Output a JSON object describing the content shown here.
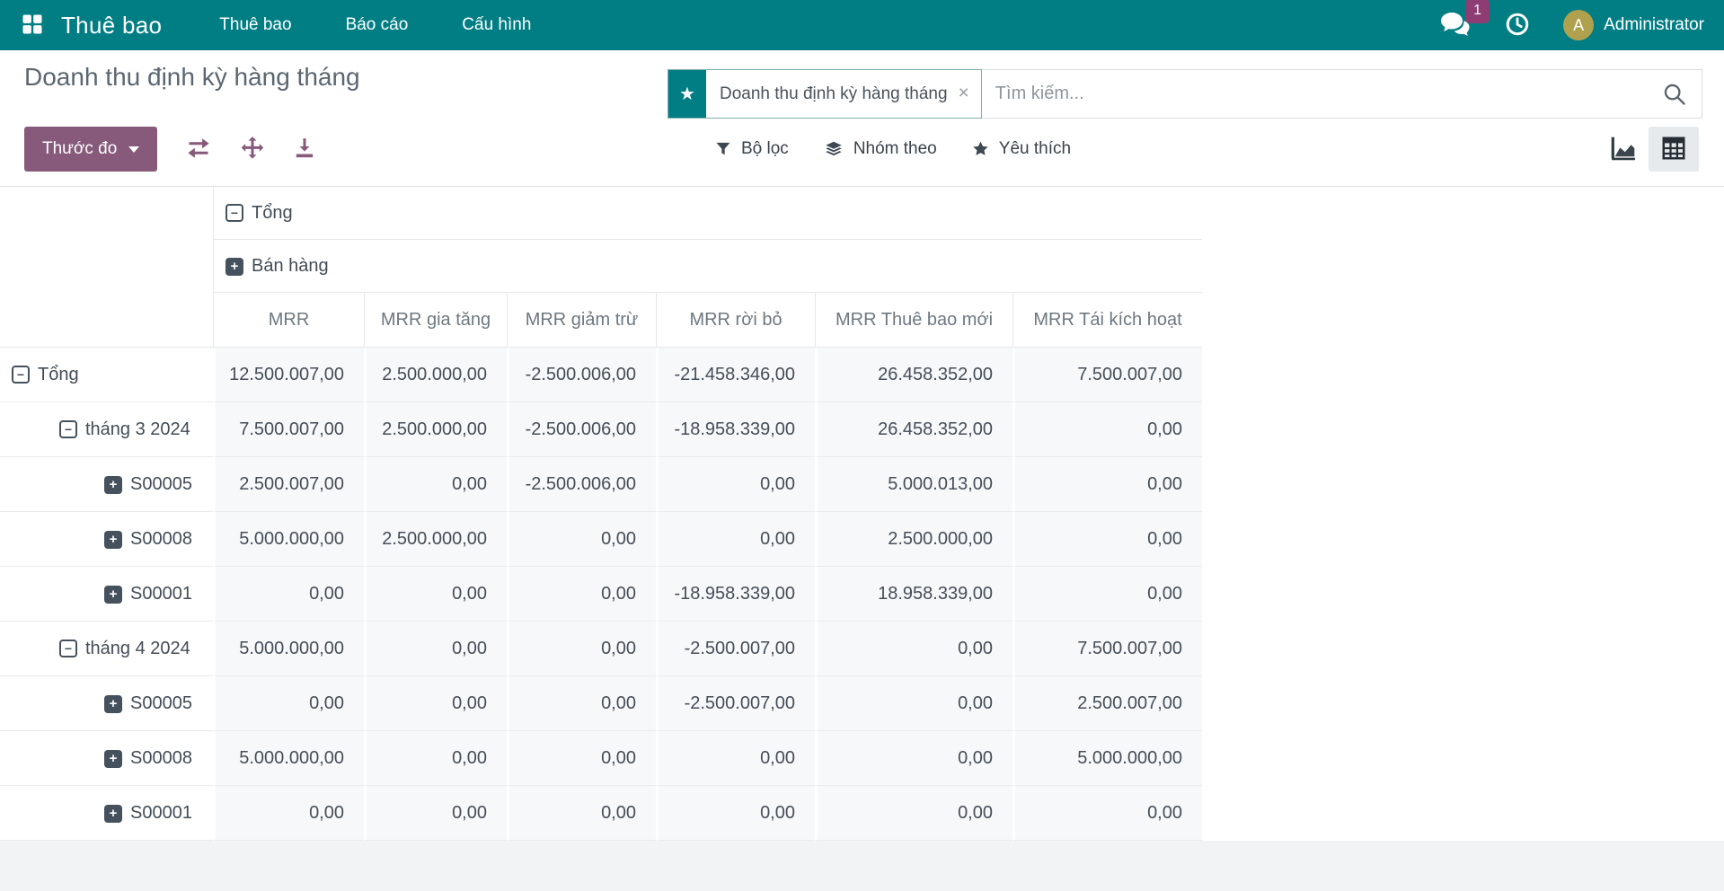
{
  "navbar": {
    "brand": "Thuê bao",
    "menus": [
      "Thuê bao",
      "Báo cáo",
      "Cấu hình"
    ],
    "message_badge": "1",
    "avatar_initial": "A",
    "user_name": "Administrator"
  },
  "control_panel": {
    "title": "Doanh thu định kỳ hàng tháng",
    "measures_button_label": "Thước đo",
    "search": {
      "facet_label": "Doanh thu định kỳ hàng tháng",
      "placeholder": "Tìm kiếm..."
    },
    "filters": [
      {
        "id": "filters",
        "icon": "filter-icon",
        "label": "Bộ lọc"
      },
      {
        "id": "group-by",
        "icon": "layers-icon",
        "label": "Nhóm theo"
      },
      {
        "id": "favorites",
        "icon": "star-icon",
        "label": "Yêu thích"
      }
    ]
  },
  "pivot": {
    "column_groups": [
      {
        "label": "Tổng",
        "state": "expanded"
      },
      {
        "label": "Bán hàng",
        "state": "collapsed"
      }
    ],
    "measures": [
      "MRR",
      "MRR gia tăng",
      "MRR giảm trừ",
      "MRR rời bỏ",
      "MRR Thuê bao mới",
      "MRR Tái kích hoạt"
    ],
    "rows": [
      {
        "label": "Tổng",
        "depth": 0,
        "state": "expanded",
        "values": [
          "12.500.007,00",
          "2.500.000,00",
          "-2.500.006,00",
          "-21.458.346,00",
          "26.458.352,00",
          "7.500.007,00"
        ]
      },
      {
        "label": "tháng 3 2024",
        "depth": 1,
        "state": "expanded",
        "values": [
          "7.500.007,00",
          "2.500.000,00",
          "-2.500.006,00",
          "-18.958.339,00",
          "26.458.352,00",
          "0,00"
        ]
      },
      {
        "label": "S00005",
        "depth": 2,
        "state": "collapsed",
        "values": [
          "2.500.007,00",
          "0,00",
          "-2.500.006,00",
          "0,00",
          "5.000.013,00",
          "0,00"
        ]
      },
      {
        "label": "S00008",
        "depth": 2,
        "state": "collapsed",
        "values": [
          "5.000.000,00",
          "2.500.000,00",
          "0,00",
          "0,00",
          "2.500.000,00",
          "0,00"
        ]
      },
      {
        "label": "S00001",
        "depth": 2,
        "state": "collapsed",
        "values": [
          "0,00",
          "0,00",
          "0,00",
          "-18.958.339,00",
          "18.958.339,00",
          "0,00"
        ]
      },
      {
        "label": "tháng 4 2024",
        "depth": 1,
        "state": "expanded",
        "values": [
          "5.000.000,00",
          "0,00",
          "0,00",
          "-2.500.007,00",
          "0,00",
          "7.500.007,00"
        ]
      },
      {
        "label": "S00005",
        "depth": 2,
        "state": "collapsed",
        "values": [
          "0,00",
          "0,00",
          "0,00",
          "-2.500.007,00",
          "0,00",
          "2.500.007,00"
        ]
      },
      {
        "label": "S00008",
        "depth": 2,
        "state": "collapsed",
        "values": [
          "5.000.000,00",
          "0,00",
          "0,00",
          "0,00",
          "0,00",
          "5.000.000,00"
        ]
      },
      {
        "label": "S00001",
        "depth": 2,
        "state": "collapsed",
        "values": [
          "0,00",
          "0,00",
          "0,00",
          "0,00",
          "0,00",
          "0,00"
        ]
      }
    ]
  },
  "colors": {
    "navbar_teal": "#017e84",
    "primary_purple": "#875a7b",
    "badge_magenta": "#8d3d72",
    "avatar_olive": "#b0a14e"
  }
}
